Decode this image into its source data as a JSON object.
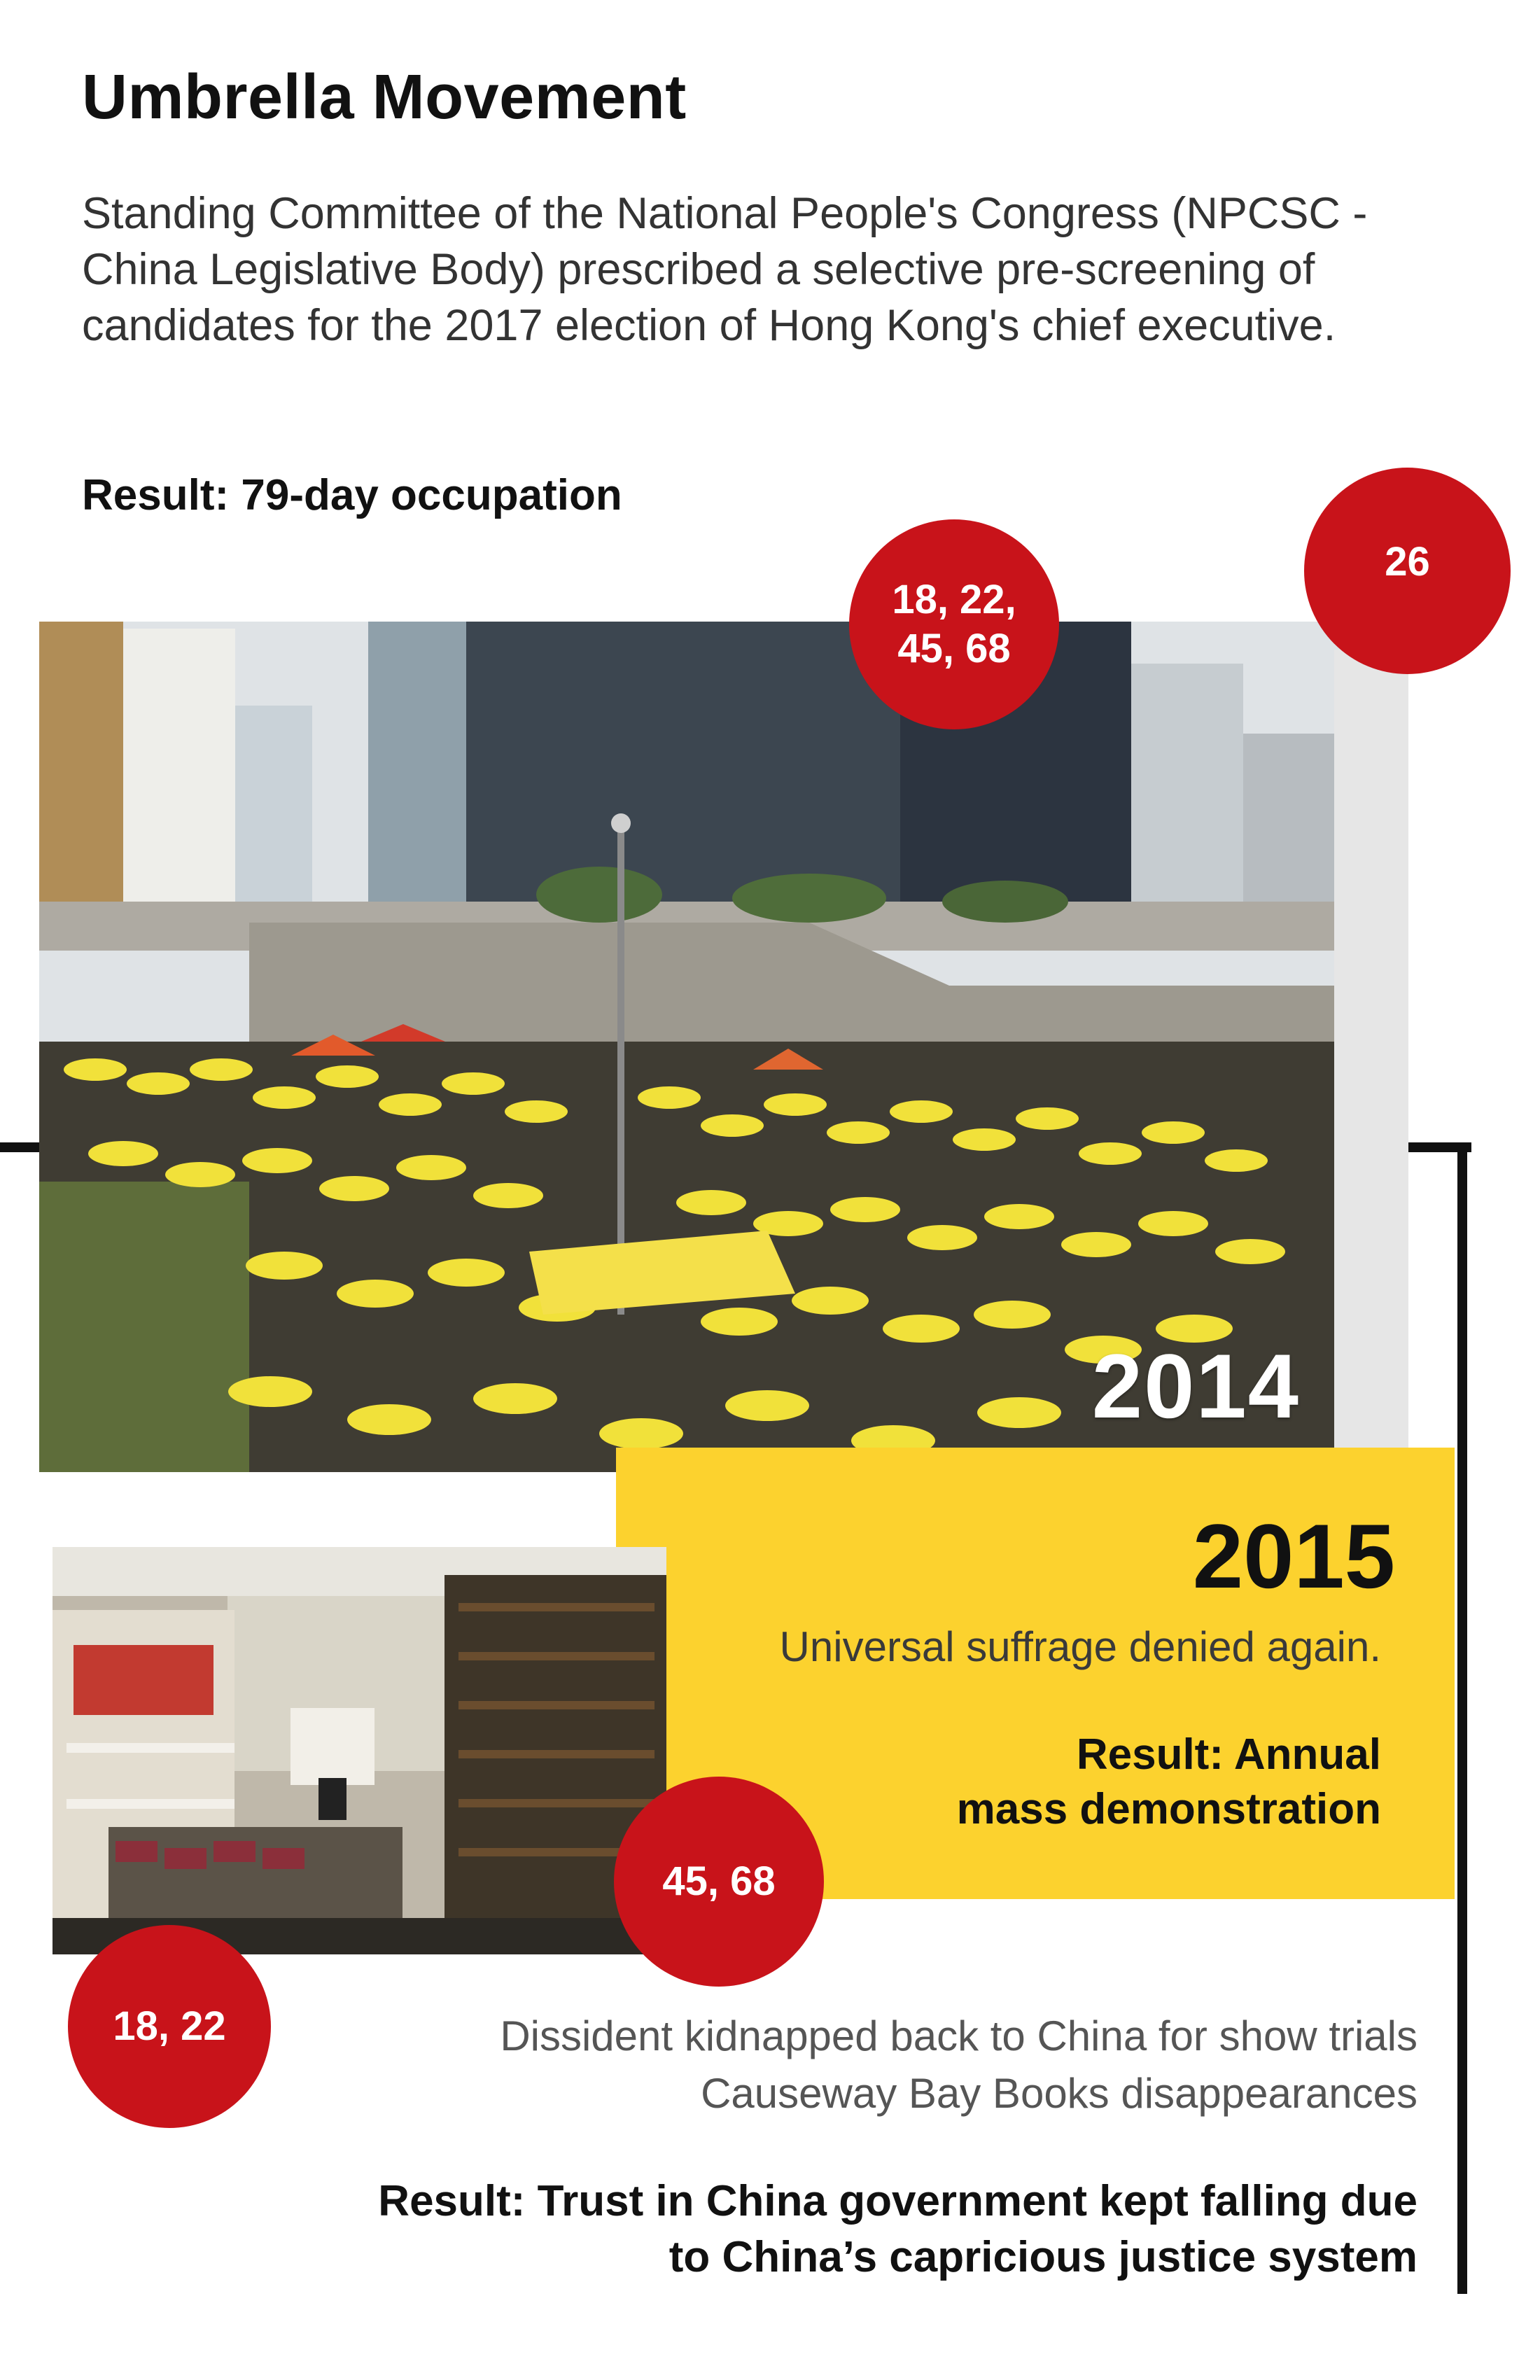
{
  "header": {
    "title": "Umbrella Movement",
    "intro": "Standing Committee of the National People's Congress (NPCSC - China Legislative Body) prescribed a selective pre-screening of candidates for the 2017 election of Hong Kong's chief executive.",
    "result": "Result: 79-day occupation"
  },
  "section_2014": {
    "year": "2014",
    "badges": [
      "18, 22, 45, 68",
      "26"
    ]
  },
  "section_2015": {
    "year": "2015",
    "description": "Universal suffrage denied again.",
    "result_line1": "Result: Annual",
    "result_line2": "mass demonstration",
    "badge": "45, 68"
  },
  "section_bookstore": {
    "badge": "18, 22",
    "line1": "Dissident kidnapped back to China for show trials",
    "line2": "Causeway Bay Books disappearances",
    "result_line1": "Result: Trust in China government kept falling due",
    "result_line2": "to China’s capricious justice system"
  },
  "colors": {
    "accent_red": "#c8131a",
    "panel_yellow": "#fcd22e",
    "timeline": "#111111"
  }
}
